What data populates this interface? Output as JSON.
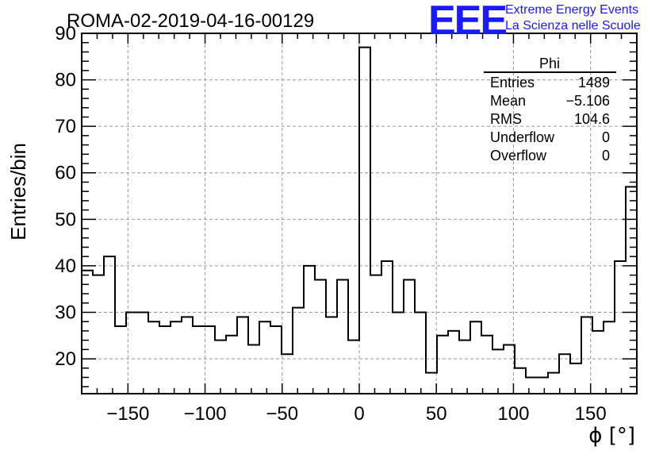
{
  "logo": {
    "mark": "EEE",
    "line1": "Extreme Energy Events",
    "line2": "La Scienza nelle Scuole"
  },
  "stats": {
    "title": "Phi",
    "rows": [
      {
        "label": "Entries",
        "value": "1489"
      },
      {
        "label": "Mean",
        "value": "−5.106"
      },
      {
        "label": "RMS",
        "value": "104.6"
      },
      {
        "label": "Underflow",
        "value": "0"
      },
      {
        "label": "Overflow",
        "value": "0"
      }
    ]
  },
  "chart_data": {
    "type": "histogram",
    "title": "ROMA-02-2019-04-16-00129",
    "xlabel": "ϕ [°]",
    "ylabel": "Entries/bin",
    "xlim": [
      -180,
      180
    ],
    "ylim": [
      12.5,
      90
    ],
    "grid": true,
    "bin_width": 7.2,
    "xticks": [
      -150,
      -100,
      -50,
      0,
      50,
      100,
      150
    ],
    "xtick_labels": [
      "−150",
      "−100",
      "−50",
      "0",
      "50",
      "100",
      "150"
    ],
    "yticks": [
      20,
      30,
      40,
      50,
      60,
      70,
      80,
      90
    ],
    "ytick_labels": [
      "20",
      "30",
      "40",
      "50",
      "60",
      "70",
      "80",
      "90"
    ],
    "values": [
      39,
      38,
      42,
      27,
      30,
      30,
      28,
      27,
      28,
      29,
      27,
      27,
      24,
      25,
      29,
      23,
      28,
      27,
      21,
      31,
      40,
      37,
      29,
      37,
      24,
      87,
      38,
      41,
      30,
      37,
      30,
      17,
      25,
      26,
      24,
      28,
      25,
      22,
      23,
      18,
      16,
      16,
      17,
      21,
      19,
      29,
      26,
      28,
      41,
      57
    ]
  }
}
